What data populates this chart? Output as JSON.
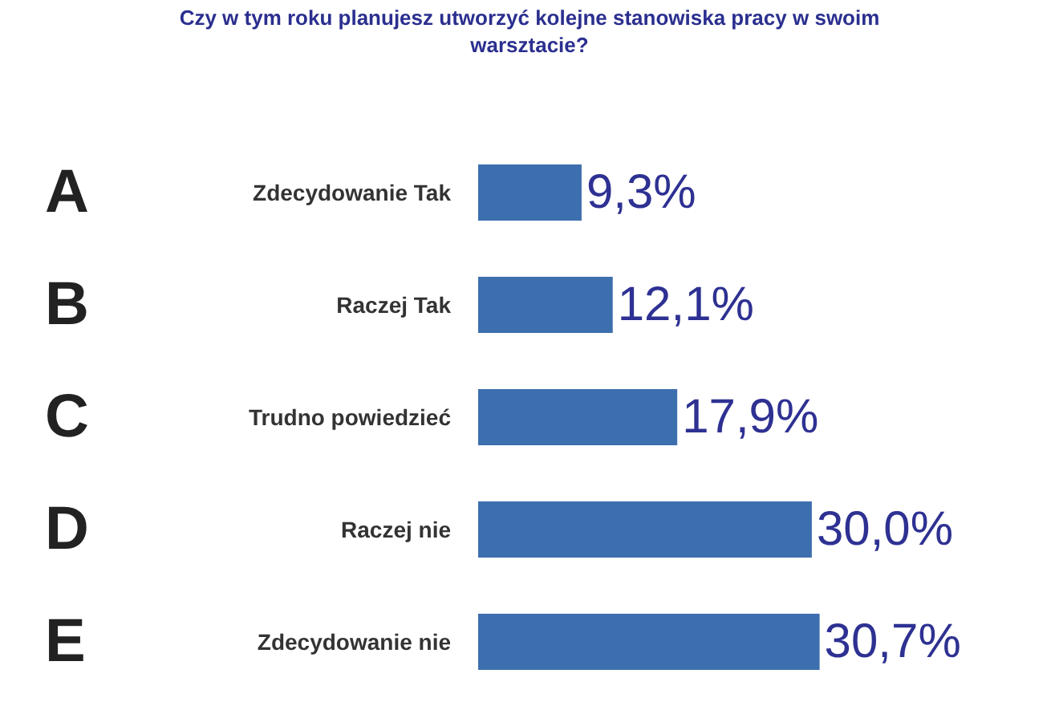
{
  "chart_data": {
    "type": "bar",
    "orientation": "horizontal",
    "title": "Czy w tym roku planujesz utworzyć kolejne stanowiska pracy w swoim warsztacie?",
    "categories": [
      "Zdecydowanie Tak",
      "Raczej Tak",
      "Trudno powiedzieć",
      "Raczej nie",
      "Zdecydowanie nie"
    ],
    "values": [
      9.3,
      12.1,
      17.9,
      30.0,
      30.7
    ],
    "value_labels": [
      "9,3%",
      "12,1%",
      "17,9%",
      "30,0%",
      "30,7%"
    ],
    "color": "#3d6fae",
    "annotations": [
      "A",
      "B",
      "C",
      "D",
      "E"
    ],
    "tick_labels": "y"
  }
}
